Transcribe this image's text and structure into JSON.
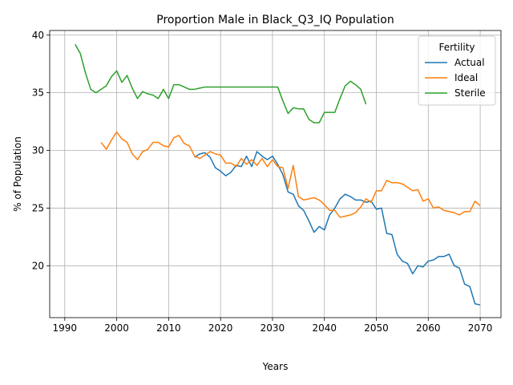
{
  "chart_data": {
    "type": "line",
    "title": "Proportion Male in Black_Q3_IQ Population",
    "xlabel": "Years",
    "ylabel": "% of Population",
    "xlim": [
      1987.1,
      2074.0
    ],
    "ylim": [
      15.5,
      40.4
    ],
    "xticks": [
      1990,
      2000,
      2010,
      2020,
      2030,
      2040,
      2050,
      2060,
      2070
    ],
    "yticks": [
      20,
      25,
      30,
      35,
      40
    ],
    "grid": true,
    "legend": {
      "title": "Fertility",
      "placement": "top-right"
    },
    "series": [
      {
        "name": "Actual",
        "color": "#1f77b4",
        "x": [
          2015,
          2016,
          2017,
          2018,
          2019,
          2020,
          2021,
          2022,
          2023,
          2024,
          2025,
          2026,
          2027,
          2028,
          2029,
          2030,
          2031,
          2032,
          2033,
          2034,
          2035,
          2036,
          2037,
          2038,
          2039,
          2040,
          2041,
          2042,
          2043,
          2044,
          2045,
          2046,
          2047,
          2048,
          2049,
          2050,
          2051,
          2052,
          2053,
          2054,
          2055,
          2056,
          2057,
          2058,
          2059,
          2060,
          2061,
          2062,
          2063,
          2064,
          2065,
          2066,
          2067,
          2068,
          2069,
          2070
        ],
        "y": [
          29.4,
          29.7,
          29.8,
          29.4,
          28.5,
          28.2,
          27.8,
          28.1,
          28.7,
          28.6,
          29.5,
          28.6,
          29.9,
          29.5,
          29.2,
          29.5,
          28.8,
          27.9,
          26.4,
          26.2,
          25.2,
          24.8,
          23.9,
          22.9,
          23.4,
          23.1,
          24.4,
          25.0,
          25.8,
          26.2,
          26.0,
          25.7,
          25.7,
          25.5,
          25.6,
          24.9,
          25.0,
          22.8,
          22.7,
          21.0,
          20.4,
          20.2,
          19.3,
          20.0,
          19.9,
          20.4,
          20.5,
          20.8,
          20.8,
          21.0,
          20.0,
          19.8,
          18.4,
          18.2,
          16.7,
          16.6
        ]
      },
      {
        "name": "Ideal",
        "color": "#ff7f0e",
        "x": [
          1997,
          1998,
          1999,
          2000,
          2001,
          2002,
          2003,
          2004,
          2005,
          2006,
          2007,
          2008,
          2009,
          2010,
          2011,
          2012,
          2013,
          2014,
          2015,
          2016,
          2017,
          2018,
          2019,
          2020,
          2021,
          2022,
          2023,
          2024,
          2025,
          2026,
          2027,
          2028,
          2029,
          2030,
          2031,
          2032,
          2033,
          2034,
          2035,
          2036,
          2037,
          2038,
          2039,
          2040,
          2041,
          2042,
          2043,
          2044,
          2045,
          2046,
          2047,
          2048,
          2049,
          2050,
          2051,
          2052,
          2053,
          2054,
          2055,
          2056,
          2057,
          2058,
          2059,
          2060,
          2061,
          2062,
          2063,
          2064,
          2065,
          2066,
          2067,
          2068,
          2069,
          2070
        ],
        "y": [
          30.7,
          30.1,
          30.9,
          31.6,
          31.0,
          30.7,
          29.7,
          29.2,
          29.9,
          30.1,
          30.7,
          30.7,
          30.4,
          30.3,
          31.1,
          31.3,
          30.6,
          30.4,
          29.5,
          29.3,
          29.6,
          29.9,
          29.7,
          29.6,
          28.9,
          28.9,
          28.6,
          29.3,
          28.8,
          29.2,
          28.7,
          29.3,
          28.6,
          29.2,
          28.6,
          28.5,
          26.7,
          28.7,
          26.0,
          25.7,
          25.8,
          25.9,
          25.7,
          25.3,
          24.8,
          24.8,
          24.2,
          24.3,
          24.4,
          24.6,
          25.1,
          25.8,
          25.5,
          26.5,
          26.5,
          27.4,
          27.2,
          27.2,
          27.1,
          26.8,
          26.5,
          26.6,
          25.6,
          25.8,
          25.0,
          25.1,
          24.8,
          24.7,
          24.6,
          24.4,
          24.7,
          24.7,
          25.6,
          25.2
        ]
      },
      {
        "name": "Sterile",
        "color": "#2ca02c",
        "x": [
          1992,
          1993,
          1994,
          1995,
          1996,
          1997,
          1998,
          1999,
          2000,
          2001,
          2002,
          2003,
          2004,
          2005,
          2006,
          2007,
          2008,
          2009,
          2010,
          2011,
          2012,
          2013,
          2014,
          2015,
          2016,
          2017,
          2018,
          2019,
          2020,
          2021,
          2022,
          2023,
          2024,
          2025,
          2026,
          2027,
          2028,
          2029,
          2030,
          2031,
          2032,
          2033,
          2034,
          2035,
          2036,
          2037,
          2038,
          2039,
          2040,
          2041,
          2042,
          2043,
          2044,
          2045,
          2046,
          2047,
          2048
        ],
        "y": [
          39.2,
          38.4,
          36.7,
          35.3,
          35.0,
          35.3,
          35.6,
          36.4,
          36.9,
          35.9,
          36.5,
          35.4,
          34.5,
          35.1,
          34.9,
          34.8,
          34.5,
          35.3,
          34.5,
          35.7,
          35.7,
          35.5,
          35.3,
          35.3,
          35.4,
          35.5,
          35.5,
          35.5,
          35.5,
          35.5,
          35.5,
          35.5,
          35.5,
          35.5,
          35.5,
          35.5,
          35.5,
          35.5,
          35.5,
          35.5,
          34.3,
          33.2,
          33.7,
          33.6,
          33.6,
          32.7,
          32.4,
          32.4,
          33.3,
          33.3,
          33.3,
          34.5,
          35.6,
          36.0,
          35.7,
          35.3,
          34.0
        ]
      }
    ]
  }
}
